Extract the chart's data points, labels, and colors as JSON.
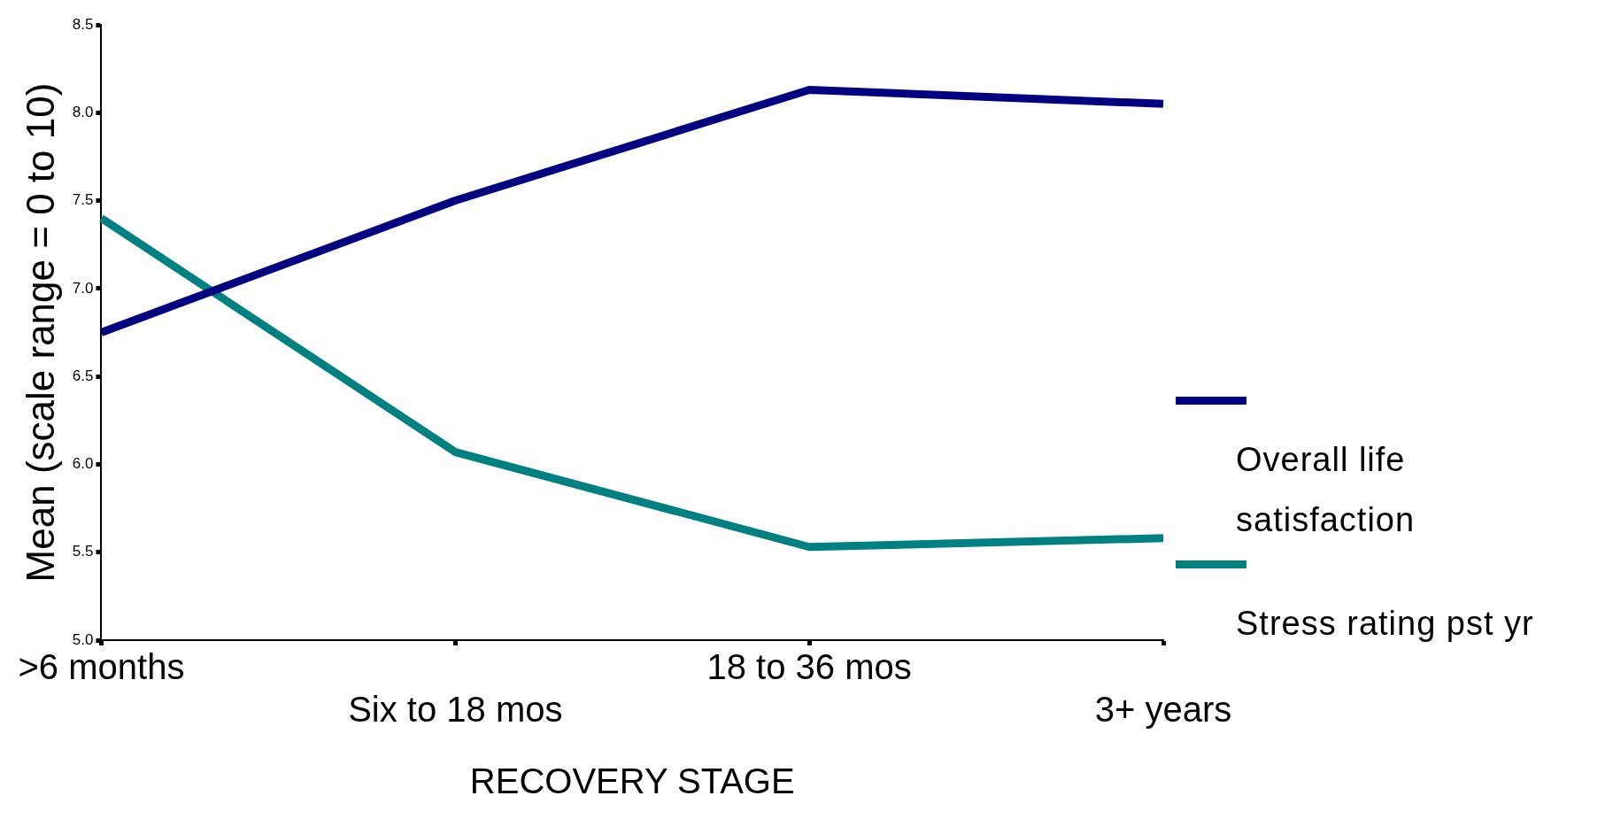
{
  "chart_data": {
    "type": "line",
    "xlabel": "RECOVERY STAGE",
    "ylabel": "Mean (scale range = 0 to 10)",
    "categories": [
      ">6 months",
      "Six to 18 mos",
      "18 to 36 mos",
      "3+ years"
    ],
    "series": [
      {
        "name": "Overall life satisfaction",
        "color": "#000080",
        "values": [
          6.75,
          7.5,
          8.13,
          8.05
        ]
      },
      {
        "name": "Stress rating pst yr",
        "color": "#008080",
        "values": [
          7.4,
          6.07,
          5.53,
          5.58
        ]
      }
    ],
    "ylim": [
      5,
      8.5
    ],
    "yticks": [
      {
        "value": 5,
        "label": "5.0"
      },
      {
        "value": 5.5,
        "label": "5.5"
      },
      {
        "value": 6,
        "label": "6.0"
      },
      {
        "value": 6.5,
        "label": "6.5"
      },
      {
        "value": 7,
        "label": "7.0"
      },
      {
        "value": 7.5,
        "label": "7.5"
      },
      {
        "value": 8,
        "label": "8.0"
      },
      {
        "value": 8.5,
        "label": "8.5"
      }
    ],
    "grid": false,
    "legend": "right",
    "marker": "none",
    "line_style": "solid"
  }
}
